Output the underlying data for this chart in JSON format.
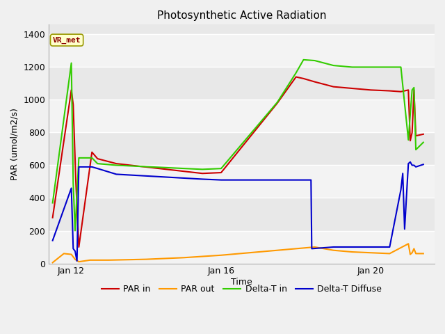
{
  "title": "Photosynthetic Active Radiation",
  "ylabel": "PAR (umol/m2/s)",
  "xlabel": "Time",
  "figure_bg": "#f0f0f0",
  "plot_bg": "#e8e8e8",
  "yticks": [
    0,
    200,
    400,
    600,
    800,
    1000,
    1200,
    1400
  ],
  "ylim": [
    0,
    1460
  ],
  "legend_labels": [
    "PAR in",
    "PAR out",
    "Delta-T in",
    "Delta-T Diffuse"
  ],
  "legend_colors": [
    "#cc0000",
    "#ff9900",
    "#33cc00",
    "#0000cc"
  ],
  "watermark_text": "VR_met",
  "series": {
    "PAR_in": {
      "color": "#cc0000",
      "x": [
        11.5,
        12.0,
        12.05,
        12.12,
        12.2,
        12.55,
        12.7,
        13.2,
        15.5,
        16.0,
        17.5,
        18.0,
        18.2,
        18.5,
        19.0,
        19.5,
        20.0,
        20.5,
        20.8,
        21.0,
        21.05,
        21.1,
        21.15,
        21.2,
        21.4
      ],
      "y": [
        280,
        1060,
        970,
        500,
        100,
        680,
        640,
        610,
        550,
        555,
        980,
        1140,
        1130,
        1110,
        1080,
        1070,
        1060,
        1055,
        1050,
        1060,
        750,
        800,
        1060,
        780,
        790
      ]
    },
    "PAR_out": {
      "color": "#ff9900",
      "x": [
        11.5,
        11.8,
        12.0,
        12.1,
        12.2,
        12.5,
        12.6,
        13.0,
        14.0,
        15.0,
        16.0,
        17.0,
        18.0,
        18.5,
        19.0,
        19.5,
        20.0,
        20.5,
        21.0,
        21.05,
        21.1,
        21.15,
        21.2,
        21.4
      ],
      "y": [
        5,
        60,
        55,
        25,
        10,
        20,
        20,
        20,
        25,
        35,
        50,
        70,
        90,
        100,
        80,
        70,
        65,
        60,
        120,
        55,
        65,
        90,
        60,
        60
      ]
    },
    "Delta_T_in": {
      "color": "#33cc00",
      "x": [
        11.5,
        12.0,
        12.05,
        12.1,
        12.2,
        12.55,
        12.7,
        13.2,
        15.5,
        16.0,
        17.5,
        18.0,
        18.2,
        18.5,
        19.0,
        19.5,
        20.0,
        20.5,
        20.8,
        21.0,
        21.05,
        21.1,
        21.15,
        21.2,
        21.4
      ],
      "y": [
        370,
        1225,
        490,
        200,
        645,
        645,
        610,
        600,
        575,
        580,
        985,
        1165,
        1245,
        1240,
        1210,
        1200,
        1200,
        1200,
        1200,
        755,
        910,
        1060,
        1075,
        695,
        740
      ]
    },
    "Delta_T_Diffuse": {
      "color": "#0000cc",
      "x": [
        11.5,
        12.0,
        12.05,
        12.1,
        12.15,
        12.2,
        12.55,
        12.7,
        13.2,
        15.5,
        16.0,
        17.5,
        18.0,
        18.2,
        18.4,
        18.42,
        19.0,
        19.5,
        20.0,
        20.5,
        20.8,
        20.85,
        20.9,
        21.0,
        21.05,
        21.1,
        21.15,
        21.2,
        21.4
      ],
      "y": [
        140,
        460,
        90,
        75,
        15,
        590,
        590,
        580,
        545,
        515,
        510,
        510,
        510,
        510,
        510,
        90,
        100,
        100,
        100,
        100,
        450,
        550,
        210,
        610,
        620,
        600,
        600,
        590,
        605
      ]
    }
  },
  "xtick_positions": [
    12,
    16,
    20
  ],
  "xtick_labels": [
    "Jan 12",
    "Jan 16",
    "Jan 20"
  ],
  "xlim": [
    11.4,
    21.7
  ]
}
